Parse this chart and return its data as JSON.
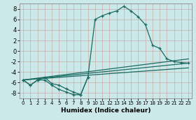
{
  "xlabel": "Humidex (Indice chaleur)",
  "xlim": [
    -0.5,
    23.5
  ],
  "ylim": [
    -9,
    9
  ],
  "xticks": [
    0,
    1,
    2,
    3,
    4,
    5,
    6,
    7,
    8,
    9,
    10,
    11,
    12,
    13,
    14,
    15,
    16,
    17,
    18,
    19,
    20,
    21,
    22,
    23
  ],
  "yticks": [
    -8,
    -6,
    -4,
    -2,
    0,
    2,
    4,
    6,
    8
  ],
  "bg_color": "#cce9e9",
  "grid_color_major": "#b8d8d8",
  "grid_color_minor": "#d4ebeb",
  "line_color": "#1a6b62",
  "curve1": {
    "x": [
      0,
      1,
      2,
      3,
      4,
      5,
      6,
      7,
      8,
      9,
      10,
      11,
      12,
      13,
      14,
      15,
      16,
      17,
      18,
      19,
      20,
      21,
      22,
      23
    ],
    "y": [
      -5.5,
      -6.5,
      -5.5,
      -5.5,
      -6.5,
      -7.3,
      -7.8,
      -8.3,
      -8.3,
      -5.0,
      6.0,
      6.7,
      7.2,
      7.6,
      8.5,
      7.6,
      6.5,
      5.0,
      1.1,
      0.5,
      -1.5,
      -2.0,
      -2.2,
      -2.3
    ]
  },
  "curve2": {
    "x": [
      0,
      1,
      2,
      3,
      4,
      5,
      6,
      7,
      8,
      9
    ],
    "y": [
      -5.5,
      -6.5,
      -5.5,
      -5.0,
      -6.2,
      -6.5,
      -7.2,
      -7.8,
      -8.3,
      -5.0
    ]
  },
  "line1": {
    "x": [
      0,
      23
    ],
    "y": [
      -5.5,
      -2.3
    ]
  },
  "line2": {
    "x": [
      0,
      23
    ],
    "y": [
      -5.5,
      -1.5
    ]
  },
  "line3": {
    "x": [
      0,
      23
    ],
    "y": [
      -5.5,
      -3.2
    ]
  }
}
